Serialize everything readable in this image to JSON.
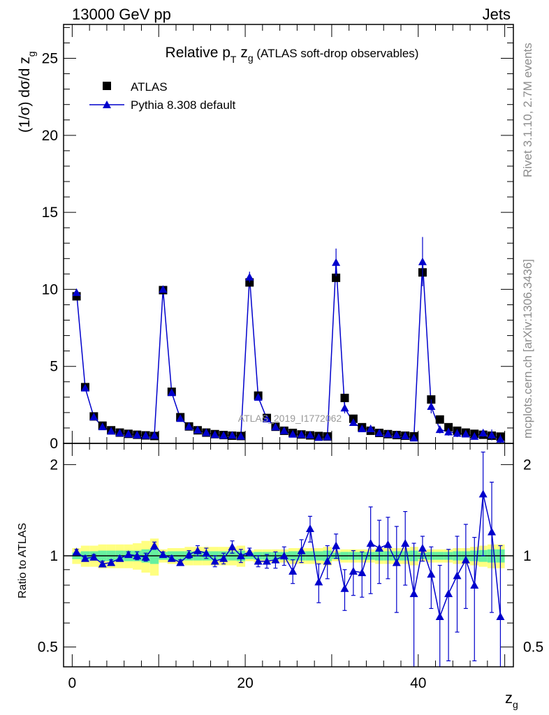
{
  "header": {
    "energy_label": "13000 GeV pp",
    "category_label": "Jets"
  },
  "side_text": {
    "rivet": "Rivet 3.1.10,  2.7M events",
    "mcplots": "mcplots.cern.ch [arXiv:1306.3436]"
  },
  "watermark": "ATLAS_2019_I1772062",
  "chart_data": [
    {
      "type": "scatter",
      "title": "Relative p_T z_g (ATLAS soft-drop observables)",
      "title_main": "Relative p",
      "title_sub": "T",
      "title_var": " z",
      "title_var_sub": "g",
      "title_tail": " (ATLAS soft-drop observables)",
      "ylabel": "(1/σ) dσ/d z_g",
      "ylabel_main": "(1/σ) dσ/d z",
      "ylabel_sub": "g",
      "ylim": [
        0,
        27.2
      ],
      "xlim": [
        -1,
        51
      ],
      "yticks": [
        0,
        5,
        10,
        15,
        20,
        25
      ],
      "ytick_labels": [
        "0",
        "5",
        "10",
        "15",
        "20",
        "25"
      ],
      "legend_placement": "top-left",
      "series": [
        {
          "name": "ATLAS",
          "marker": "square",
          "color": "#000000",
          "x": [
            0.5,
            1.5,
            2.5,
            3.5,
            4.5,
            5.5,
            6.5,
            7.5,
            8.5,
            9.5,
            10.5,
            11.5,
            12.5,
            13.5,
            14.5,
            15.5,
            16.5,
            17.5,
            18.5,
            19.5,
            20.5,
            21.5,
            22.5,
            23.5,
            24.5,
            25.5,
            26.5,
            27.5,
            28.5,
            29.5,
            30.5,
            31.5,
            32.5,
            33.5,
            34.5,
            35.5,
            36.5,
            37.5,
            38.5,
            39.5,
            40.5,
            41.5,
            42.5,
            43.5,
            44.5,
            45.5,
            46.5,
            47.5,
            48.5,
            49.5
          ],
          "y": [
            9.55,
            3.65,
            1.75,
            1.15,
            0.85,
            0.7,
            0.62,
            0.56,
            0.52,
            0.48,
            9.95,
            3.35,
            1.7,
            1.1,
            0.85,
            0.7,
            0.6,
            0.54,
            0.5,
            0.48,
            10.45,
            3.1,
            1.65,
            1.08,
            0.82,
            0.68,
            0.58,
            0.52,
            0.48,
            0.45,
            10.75,
            2.95,
            1.6,
            1.05,
            0.82,
            0.68,
            0.6,
            0.54,
            0.5,
            0.46,
            11.1,
            2.85,
            1.55,
            1.05,
            0.82,
            0.7,
            0.62,
            0.56,
            0.5,
            0.44
          ]
        },
        {
          "name": "Pythia 8.308 default",
          "marker": "triangle",
          "color": "#0000cc",
          "x": [
            0.5,
            1.5,
            2.5,
            3.5,
            4.5,
            5.5,
            6.5,
            7.5,
            8.5,
            9.5,
            10.5,
            11.5,
            12.5,
            13.5,
            14.5,
            15.5,
            16.5,
            17.5,
            18.5,
            19.5,
            20.5,
            21.5,
            22.5,
            23.5,
            24.5,
            25.5,
            26.5,
            27.5,
            28.5,
            29.5,
            30.5,
            31.5,
            32.5,
            33.5,
            34.5,
            35.5,
            36.5,
            37.5,
            38.5,
            39.5,
            40.5,
            41.5,
            42.5,
            43.5,
            44.5,
            45.5,
            46.5,
            47.5,
            48.5,
            49.5
          ],
          "y": [
            9.8,
            3.6,
            1.72,
            1.08,
            0.8,
            0.68,
            0.62,
            0.55,
            0.52,
            0.52,
            10.0,
            3.3,
            1.62,
            1.1,
            0.87,
            0.7,
            0.57,
            0.52,
            0.53,
            0.47,
            10.8,
            3.0,
            1.6,
            1.07,
            0.83,
            0.6,
            0.58,
            0.55,
            0.39,
            0.43,
            11.75,
            2.3,
            1.36,
            0.95,
            0.95,
            0.68,
            0.62,
            0.56,
            0.5,
            0.35,
            11.8,
            2.4,
            0.9,
            0.75,
            0.66,
            0.61,
            0.46,
            0.68,
            0.55,
            0.28
          ],
          "yerr": [
            0.1,
            0.05,
            0.03,
            0.02,
            0.02,
            0.02,
            0.02,
            0.02,
            0.02,
            0.02,
            0.15,
            0.08,
            0.05,
            0.03,
            0.03,
            0.03,
            0.03,
            0.03,
            0.03,
            0.03,
            0.35,
            0.1,
            0.06,
            0.05,
            0.05,
            0.05,
            0.05,
            0.05,
            0.05,
            0.05,
            0.9,
            0.35,
            0.2,
            0.15,
            0.15,
            0.1,
            0.08,
            0.08,
            0.08,
            0.08,
            1.6,
            0.45,
            0.25,
            0.25,
            0.25,
            0.2,
            0.2,
            0.25,
            0.35,
            0.3
          ]
        }
      ]
    },
    {
      "type": "scatter",
      "title": "",
      "ylabel": "Ratio to ATLAS",
      "xlabel": "z_g",
      "xlabel_main": "z",
      "xlabel_sub": "g",
      "scale": "log",
      "ylim": [
        0.43,
        2.35
      ],
      "xlim": [
        -1,
        51
      ],
      "yticks": [
        0.5,
        1,
        2
      ],
      "ytick_labels": [
        "0.5",
        "1",
        "2"
      ],
      "xticks": [
        0,
        20,
        40
      ],
      "xtick_labels": [
        "0",
        "20",
        "40"
      ],
      "reference_line": 1,
      "band_colors": {
        "inner": "#66f0a0",
        "outer": "#ffff80"
      },
      "band_inner_halfwidth": [
        0.025,
        0.035,
        0.035,
        0.04,
        0.04,
        0.04,
        0.04,
        0.04,
        0.05,
        0.06,
        0.03,
        0.035,
        0.035,
        0.035,
        0.035,
        0.035,
        0.035,
        0.035,
        0.035,
        0.04,
        0.025,
        0.03,
        0.03,
        0.03,
        0.03,
        0.035,
        0.035,
        0.035,
        0.035,
        0.04,
        0.025,
        0.03,
        0.03,
        0.03,
        0.03,
        0.035,
        0.035,
        0.035,
        0.035,
        0.04,
        0.025,
        0.03,
        0.03,
        0.03,
        0.035,
        0.035,
        0.04,
        0.045,
        0.05,
        0.05
      ],
      "band_outer_halfwidth": [
        0.06,
        0.08,
        0.08,
        0.09,
        0.09,
        0.09,
        0.09,
        0.1,
        0.12,
        0.14,
        0.05,
        0.06,
        0.06,
        0.07,
        0.07,
        0.07,
        0.07,
        0.07,
        0.07,
        0.08,
        0.04,
        0.05,
        0.05,
        0.05,
        0.05,
        0.06,
        0.06,
        0.06,
        0.06,
        0.07,
        0.04,
        0.05,
        0.05,
        0.05,
        0.05,
        0.06,
        0.06,
        0.06,
        0.06,
        0.07,
        0.04,
        0.05,
        0.05,
        0.05,
        0.06,
        0.06,
        0.07,
        0.08,
        0.09,
        0.09
      ],
      "series": [
        {
          "name": "Pythia 8.308 default",
          "color": "#0000cc",
          "x": [
            0.5,
            1.5,
            2.5,
            3.5,
            4.5,
            5.5,
            6.5,
            7.5,
            8.5,
            9.5,
            10.5,
            11.5,
            12.5,
            13.5,
            14.5,
            15.5,
            16.5,
            17.5,
            18.5,
            19.5,
            20.5,
            21.5,
            22.5,
            23.5,
            24.5,
            25.5,
            26.5,
            27.5,
            28.5,
            29.5,
            30.5,
            31.5,
            32.5,
            33.5,
            34.5,
            35.5,
            36.5,
            37.5,
            38.5,
            39.5,
            40.5,
            41.5,
            42.5,
            43.5,
            44.5,
            45.5,
            46.5,
            47.5,
            48.5,
            49.5
          ],
          "y": [
            1.03,
            0.98,
            0.99,
            0.94,
            0.95,
            0.98,
            1.01,
            1.0,
            0.99,
            1.08,
            1.01,
            0.98,
            0.95,
            1.01,
            1.04,
            1.02,
            0.96,
            0.98,
            1.07,
            1.0,
            1.03,
            0.96,
            0.96,
            0.97,
            1.0,
            0.89,
            1.04,
            1.23,
            0.82,
            0.96,
            1.08,
            0.78,
            0.89,
            0.88,
            1.1,
            1.06,
            1.09,
            0.95,
            1.1,
            0.75,
            1.06,
            0.87,
            0.63,
            0.75,
            0.86,
            0.97,
            0.8,
            1.6,
            1.2,
            0.63
          ],
          "yerr": [
            0.02,
            0.02,
            0.02,
            0.02,
            0.02,
            0.02,
            0.02,
            0.03,
            0.03,
            0.03,
            0.02,
            0.02,
            0.02,
            0.03,
            0.04,
            0.04,
            0.04,
            0.04,
            0.05,
            0.05,
            0.03,
            0.04,
            0.05,
            0.06,
            0.07,
            0.08,
            0.09,
            0.12,
            0.12,
            0.12,
            0.1,
            0.12,
            0.15,
            0.15,
            0.35,
            0.25,
            0.25,
            0.3,
            0.3,
            0.35,
            0.1,
            0.2,
            0.3,
            0.3,
            0.3,
            0.3,
            0.35,
            0.6,
            0.55,
            0.45
          ]
        }
      ]
    }
  ]
}
